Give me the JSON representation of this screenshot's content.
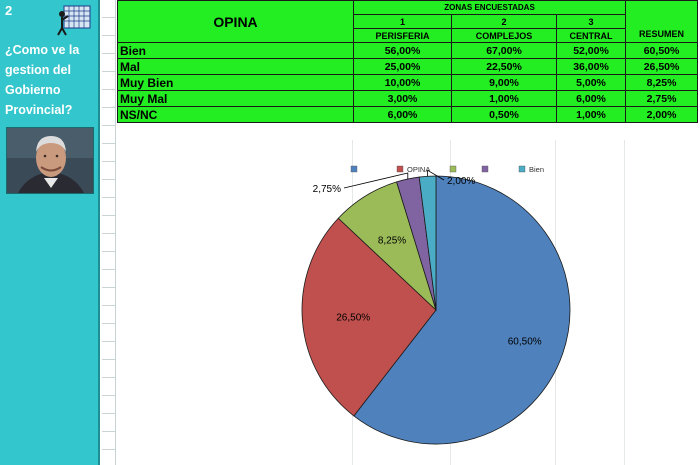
{
  "slide_number": "2",
  "question_lines": [
    "¿Como ve la",
    "gestion del",
    "Gobierno",
    "Provincial?"
  ],
  "table": {
    "opina_header": "OPINA",
    "zonas_header": "ZONAS ENCUESTADAS",
    "zone_numbers": [
      "1",
      "2",
      "3"
    ],
    "zone_names": [
      "PERISFERIA",
      "COMPLEJOS",
      "CENTRAL"
    ],
    "resumen_header": "RESUMEN",
    "rows": [
      {
        "label": "Bien",
        "values": [
          "56,00%",
          "67,00%",
          "52,00%",
          "60,50%"
        ]
      },
      {
        "label": "Mal",
        "values": [
          "25,00%",
          "22,50%",
          "36,00%",
          "26,50%"
        ]
      },
      {
        "label": "Muy Bien",
        "values": [
          "10,00%",
          "9,00%",
          "5,00%",
          "8,25%"
        ]
      },
      {
        "label": "Muy Mal",
        "values": [
          "3,00%",
          "1,00%",
          "6,00%",
          "2,75%"
        ]
      },
      {
        "label": "NS/NC",
        "values": [
          "6,00%",
          "0,50%",
          "1,00%",
          "2,00%"
        ]
      }
    ]
  },
  "colors": {
    "sidebar": "#33c6cc",
    "table_bg": "#22ee22",
    "slice_1": "#4f81bd",
    "slice_2": "#c0504d",
    "slice_3": "#9bbb59",
    "slice_4": "#8064a2",
    "slice_5": "#4bacc6"
  },
  "icons": [
    "grid-logo-icon",
    "portrait-photo"
  ],
  "chart_data": {
    "type": "pie",
    "legend": [
      "",
      "OPINA",
      "",
      "",
      "Bien"
    ],
    "legend_position": "top",
    "values": [
      60.5,
      26.5,
      8.25,
      2.75,
      2.0
    ],
    "labels": [
      "60,50%",
      "26,50%",
      "8,25%",
      "2,75%",
      "2,00%"
    ],
    "colors": [
      "#4f81bd",
      "#c0504d",
      "#9bbb59",
      "#8064a2",
      "#4bacc6"
    ],
    "start_angle_deg": 0,
    "direction": "clockwise"
  }
}
